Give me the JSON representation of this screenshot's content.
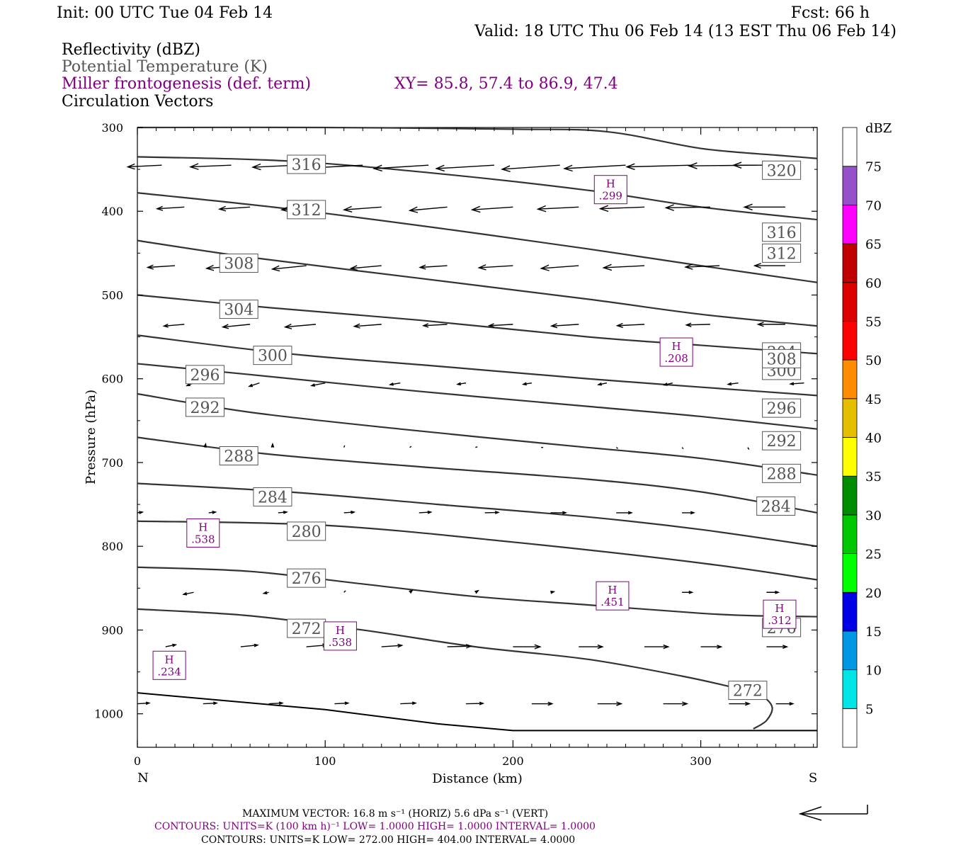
{
  "header": {
    "init": "Init: 00 UTC Tue 04 Feb 14",
    "fcst": "Fcst:   66 h",
    "valid": "Valid: 18 UTC Thu 06 Feb 14 (13 EST Thu 06 Feb 14)",
    "fields": [
      {
        "text": "Reflectivity (dBZ)",
        "color": "#000000"
      },
      {
        "text": "Potential Temperature (K)",
        "color": "#555555"
      },
      {
        "text": "Miller frontogenesis (def. term)",
        "color": "#800080"
      },
      {
        "text": "Circulation Vectors",
        "color": "#000000"
      }
    ],
    "xy": "XY=  85.8, 57.4 to  86.9, 47.4"
  },
  "chart_data": {
    "type": "line",
    "xlabel": "Distance (km)",
    "ylabel": "Pressure (hPa)",
    "x_left_label": "N",
    "x_right_label": "S",
    "xlim": [
      0,
      362
    ],
    "ylim": [
      1040,
      300
    ],
    "x_ticks": [
      0,
      100,
      200,
      300
    ],
    "y_ticks": [
      300,
      400,
      500,
      600,
      700,
      800,
      900,
      1000
    ],
    "terrain": [
      [
        0,
        975
      ],
      [
        100,
        995
      ],
      [
        160,
        1012
      ],
      [
        200,
        1020
      ],
      [
        362,
        1020
      ]
    ],
    "theta_series": [
      {
        "name": "272",
        "points": [
          [
            0,
            875
          ],
          [
            60,
            883
          ],
          [
            120,
            900
          ],
          [
            180,
            920
          ],
          [
            240,
            935
          ],
          [
            290,
            955
          ],
          [
            320,
            970
          ],
          [
            332,
            978
          ],
          [
            338,
            992
          ],
          [
            335,
            1008
          ],
          [
            328,
            1018
          ]
        ],
        "labels": [
          [
            90,
            898
          ],
          [
            325,
            972
          ]
        ]
      },
      {
        "name": "276",
        "points": [
          [
            0,
            825
          ],
          [
            60,
            830
          ],
          [
            120,
            845
          ],
          [
            180,
            860
          ],
          [
            240,
            870
          ],
          [
            300,
            880
          ],
          [
            330,
            883
          ],
          [
            362,
            884
          ]
        ],
        "labels": [
          [
            90,
            838
          ],
          [
            343,
            897
          ]
        ]
      },
      {
        "name": "280",
        "points": [
          [
            0,
            770
          ],
          [
            100,
            775
          ],
          [
            200,
            795
          ],
          [
            300,
            820
          ],
          [
            362,
            840
          ]
        ],
        "labels": [
          [
            90,
            782
          ]
        ]
      },
      {
        "name": "284",
        "points": [
          [
            0,
            725
          ],
          [
            80,
            735
          ],
          [
            160,
            750
          ],
          [
            240,
            765
          ],
          [
            300,
            780
          ],
          [
            362,
            800
          ]
        ],
        "labels": [
          [
            72,
            741
          ],
          [
            340,
            752
          ]
        ]
      },
      {
        "name": "288",
        "points": [
          [
            0,
            670
          ],
          [
            70,
            690
          ],
          [
            150,
            705
          ],
          [
            240,
            720
          ],
          [
            300,
            735
          ],
          [
            362,
            760
          ]
        ],
        "labels": [
          [
            54,
            692
          ],
          [
            343,
            713
          ]
        ]
      },
      {
        "name": "292",
        "points": [
          [
            0,
            618
          ],
          [
            60,
            640
          ],
          [
            140,
            660
          ],
          [
            230,
            680
          ],
          [
            300,
            695
          ],
          [
            362,
            715
          ]
        ],
        "labels": [
          [
            36,
            634
          ],
          [
            343,
            674
          ]
        ]
      },
      {
        "name": "296",
        "points": [
          [
            0,
            582
          ],
          [
            60,
            595
          ],
          [
            150,
            615
          ],
          [
            240,
            633
          ],
          [
            300,
            645
          ],
          [
            362,
            660
          ]
        ],
        "labels": [
          [
            36,
            595
          ],
          [
            343,
            635
          ]
        ]
      },
      {
        "name": "300",
        "points": [
          [
            0,
            548
          ],
          [
            80,
            570
          ],
          [
            160,
            585
          ],
          [
            240,
            600
          ],
          [
            300,
            610
          ],
          [
            362,
            620
          ]
        ],
        "labels": [
          [
            72,
            572
          ],
          [
            343,
            590
          ]
        ]
      },
      {
        "name": "304",
        "points": [
          [
            0,
            500
          ],
          [
            70,
            515
          ],
          [
            150,
            530
          ],
          [
            240,
            550
          ],
          [
            300,
            560
          ],
          [
            362,
            570
          ]
        ],
        "labels": [
          [
            54,
            517
          ],
          [
            343,
            568
          ]
        ]
      },
      {
        "name": "308",
        "points": [
          [
            0,
            435
          ],
          [
            60,
            455
          ],
          [
            150,
            480
          ],
          [
            240,
            505
          ],
          [
            300,
            523
          ],
          [
            362,
            537
          ]
        ],
        "labels": [
          [
            54,
            462
          ],
          [
            343,
            576
          ]
        ]
      },
      {
        "name": "312",
        "points": [
          [
            0,
            378
          ],
          [
            80,
            397
          ],
          [
            160,
            420
          ],
          [
            240,
            445
          ],
          [
            300,
            465
          ],
          [
            362,
            485
          ]
        ],
        "labels": [
          [
            90,
            398
          ],
          [
            343,
            450
          ]
        ]
      },
      {
        "name": "316",
        "points": [
          [
            0,
            335
          ],
          [
            80,
            340
          ],
          [
            160,
            355
          ],
          [
            240,
            375
          ],
          [
            300,
            395
          ],
          [
            362,
            410
          ]
        ],
        "labels": [
          [
            90,
            344
          ],
          [
            343,
            425
          ]
        ]
      },
      {
        "name": "320",
        "points": [
          [
            0,
            300
          ],
          [
            100,
            300
          ],
          [
            200,
            302
          ],
          [
            250,
            305
          ],
          [
            300,
            325
          ],
          [
            340,
            333
          ],
          [
            362,
            337
          ]
        ],
        "labels": [
          [
            343,
            351
          ]
        ]
      }
    ],
    "frontogenesis_maxima": [
      {
        "mark": "H",
        "value": ".299",
        "x": 252,
        "y": 375
      },
      {
        "mark": "H",
        "value": ".208",
        "x": 287,
        "y": 569
      },
      {
        "mark": "H",
        "value": ".538",
        "x": 35,
        "y": 785
      },
      {
        "mark": "H",
        "value": ".451",
        "x": 253,
        "y": 860
      },
      {
        "mark": "H",
        "value": ".312",
        "x": 342,
        "y": 882
      },
      {
        "mark": "H",
        "value": ".538",
        "x": 108,
        "y": 908
      },
      {
        "mark": "H",
        "value": ".234",
        "x": 17,
        "y": 943
      }
    ],
    "vector_rows": [
      {
        "p": 345,
        "x": [
          13,
          50,
          85,
          120,
          155,
          190,
          225,
          260,
          295,
          330,
          350
        ],
        "u": [
          -1.0,
          -1.2,
          -1.3,
          -1.5,
          -1.6,
          -1.7,
          -1.7,
          -1.8,
          -1.9,
          -2.0,
          -1.8
        ],
        "w": [
          -0.05,
          -0.05,
          -0.06,
          -0.08,
          -0.1,
          -0.1,
          -0.12,
          -0.1,
          -0.05,
          -0.02,
          0.0
        ]
      },
      {
        "p": 395,
        "x": [
          25,
          60,
          95,
          130,
          165,
          200,
          235,
          270,
          305,
          345
        ],
        "u": [
          -0.8,
          -0.9,
          -1.0,
          -1.1,
          -1.1,
          -1.2,
          -1.2,
          -1.3,
          -1.3,
          -1.2
        ],
        "w": [
          -0.05,
          -0.06,
          -0.08,
          -0.08,
          -0.1,
          -0.08,
          -0.06,
          -0.05,
          -0.02,
          0.0
        ]
      },
      {
        "p": 465,
        "x": [
          20,
          55,
          90,
          130,
          165,
          200,
          235,
          270,
          310,
          345
        ],
        "u": [
          -0.8,
          -1.0,
          -1.0,
          -0.9,
          -0.8,
          -1.0,
          -1.1,
          -1.2,
          -1.0,
          -0.9
        ],
        "w": [
          -0.05,
          -0.08,
          -0.1,
          -0.08,
          -0.05,
          -0.06,
          -0.08,
          -0.06,
          -0.04,
          0.0
        ]
      },
      {
        "p": 535,
        "x": [
          25,
          60,
          95,
          130,
          165,
          200,
          235,
          270,
          305,
          345
        ],
        "u": [
          -0.6,
          -0.8,
          -0.9,
          -0.8,
          -0.7,
          -0.7,
          -0.8,
          -0.8,
          -0.7,
          -0.8
        ],
        "w": [
          -0.05,
          -0.08,
          -0.08,
          -0.06,
          -0.04,
          -0.04,
          -0.05,
          -0.04,
          -0.02,
          0.0
        ]
      },
      {
        "p": 605,
        "x": [
          30,
          65,
          100,
          140,
          175,
          210,
          250,
          285,
          320,
          355
        ],
        "u": [
          -0.2,
          -0.3,
          -0.4,
          -0.3,
          -0.25,
          -0.25,
          -0.25,
          -0.25,
          -0.3,
          -0.4
        ],
        "w": [
          -0.08,
          -0.1,
          -0.08,
          -0.05,
          -0.04,
          -0.04,
          -0.05,
          -0.06,
          -0.04,
          -0.03
        ]
      },
      {
        "p": 682,
        "x": [
          36,
          72,
          110,
          145,
          180,
          215,
          255,
          290,
          325
        ],
        "u": [
          0.02,
          0.0,
          0.02,
          0.05,
          0.06,
          0.06,
          0.05,
          0.04,
          0.04
        ],
        "w": [
          0.1,
          0.1,
          0.06,
          0.03,
          0.02,
          0.0,
          -0.03,
          -0.04,
          -0.06
        ]
      },
      {
        "p": 760,
        "x": [
          0,
          38,
          75,
          110,
          150,
          185,
          220,
          255,
          290,
          330
        ],
        "u": [
          0.15,
          0.2,
          0.25,
          0.3,
          0.35,
          0.4,
          0.45,
          0.45,
          0.35,
          0.3
        ],
        "w": [
          0.02,
          0.02,
          0.02,
          0.02,
          0.02,
          0.01,
          0.0,
          0.0,
          0.0,
          0.0
        ]
      },
      {
        "p": 855,
        "x": [
          30,
          70,
          110,
          145,
          180,
          220,
          255,
          290,
          335
        ],
        "u": [
          -0.3,
          -0.15,
          0.05,
          0.08,
          0.08,
          0.1,
          0.2,
          0.3,
          0.35
        ],
        "w": [
          -0.06,
          -0.03,
          0.05,
          0.06,
          0.05,
          0.02,
          0.0,
          0.0,
          0.0
        ]
      },
      {
        "p": 920,
        "x": [
          15,
          55,
          90,
          130,
          165,
          200,
          235,
          270,
          300,
          335
        ],
        "u": [
          0.3,
          0.5,
          0.6,
          0.6,
          0.7,
          0.8,
          0.7,
          0.7,
          0.6,
          0.6
        ],
        "w": [
          0.06,
          0.05,
          0.05,
          0.04,
          0.02,
          0.0,
          0.0,
          0.0,
          0.0,
          0.0
        ]
      },
      {
        "p": 988,
        "x": [
          0,
          35,
          70,
          105,
          140,
          175,
          210,
          245,
          280,
          315,
          340
        ],
        "u": [
          0.35,
          0.4,
          0.4,
          0.4,
          0.45,
          0.5,
          0.6,
          0.7,
          0.7,
          0.6,
          0.5
        ],
        "w": [
          0.02,
          0.02,
          0.02,
          0.02,
          0.02,
          0.01,
          0.0,
          0.0,
          0.0,
          0.0,
          0.0
        ]
      }
    ],
    "colorbar": {
      "unit": "dBZ",
      "bins": [
        {
          "label": "",
          "color": "#FFFFFF"
        },
        {
          "label": "5",
          "color": "#00E5E5"
        },
        {
          "label": "10",
          "color": "#0096E6"
        },
        {
          "label": "15",
          "color": "#0000E6"
        },
        {
          "label": "20",
          "color": "#00FF00"
        },
        {
          "label": "25",
          "color": "#00C800"
        },
        {
          "label": "30",
          "color": "#008C00"
        },
        {
          "label": "35",
          "color": "#FFFF00"
        },
        {
          "label": "40",
          "color": "#E6BE00"
        },
        {
          "label": "45",
          "color": "#FF8C00"
        },
        {
          "label": "50",
          "color": "#FF0000"
        },
        {
          "label": "55",
          "color": "#DC0000"
        },
        {
          "label": "60",
          "color": "#C00000"
        },
        {
          "label": "65",
          "color": "#FF00FF"
        },
        {
          "label": "70",
          "color": "#9650C8"
        },
        {
          "label": "75",
          "color": "#FFFFFF"
        }
      ]
    }
  },
  "footer": {
    "max_vector": "MAXIMUM VECTOR:  16.8 m s⁻¹ (HORIZ)          5.6 dPa s⁻¹ (VERT)",
    "contours_fronto": "CONTOURS:  UNITS=K (100 km h)⁻¹  LOW=   1.0000        HIGH=  1.0000        INTERVAL=    1.0000",
    "contours_theta": "CONTOURS:  UNITS=K  LOW=  272.00        HIGH=  404.00         INTERVAL=    4.0000"
  },
  "colors": {
    "theta": "#333333",
    "fronto": "#800080",
    "axis": "#000000"
  }
}
